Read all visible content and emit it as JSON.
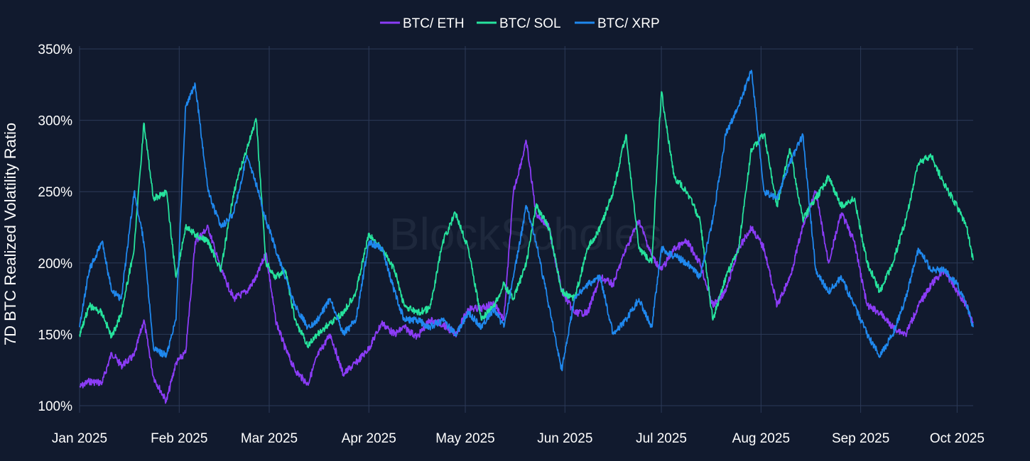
{
  "chart_data": {
    "type": "line",
    "ylabel": "7D BTC Realized Volatility Ratio",
    "watermark": "BlockScholes",
    "y_unit": "%",
    "ylim": [
      95,
      352
    ],
    "xlim": [
      "2025-01-01",
      "2025-10-06"
    ],
    "y_ticks": [
      100,
      150,
      200,
      250,
      300,
      350
    ],
    "y_tick_labels": [
      "100%",
      "150%",
      "200%",
      "250%",
      "300%",
      "350%"
    ],
    "x_ticks": [
      "2025-01-01",
      "2025-02-01",
      "2025-03-01",
      "2025-04-01",
      "2025-05-01",
      "2025-06-01",
      "2025-07-01",
      "2025-08-01",
      "2025-09-01",
      "2025-10-01"
    ],
    "x_tick_labels": [
      "Jan 2025",
      "Feb 2025",
      "Mar 2025",
      "Apr 2025",
      "May 2025",
      "Jun 2025",
      "Jul 2025",
      "Aug 2025",
      "Sep 2025",
      "Oct 2025"
    ],
    "grid": true,
    "legend_position": "top-center",
    "series": [
      {
        "name": "BTC/ ETH",
        "color": "#8b3cf6",
        "x": [
          "2025-01-01",
          "2025-01-04",
          "2025-01-08",
          "2025-01-11",
          "2025-01-14",
          "2025-01-18",
          "2025-01-21",
          "2025-01-24",
          "2025-01-28",
          "2025-01-31",
          "2025-02-03",
          "2025-02-06",
          "2025-02-10",
          "2025-02-14",
          "2025-02-18",
          "2025-02-22",
          "2025-02-25",
          "2025-02-28",
          "2025-03-03",
          "2025-03-06",
          "2025-03-09",
          "2025-03-13",
          "2025-03-16",
          "2025-03-20",
          "2025-03-24",
          "2025-03-28",
          "2025-04-01",
          "2025-04-05",
          "2025-04-09",
          "2025-04-12",
          "2025-04-16",
          "2025-04-20",
          "2025-04-24",
          "2025-04-28",
          "2025-05-02",
          "2025-05-06",
          "2025-05-10",
          "2025-05-13",
          "2025-05-16",
          "2025-05-20",
          "2025-05-23",
          "2025-05-27",
          "2025-05-31",
          "2025-06-04",
          "2025-06-08",
          "2025-06-12",
          "2025-06-16",
          "2025-06-20",
          "2025-06-24",
          "2025-06-28",
          "2025-07-01",
          "2025-07-05",
          "2025-07-09",
          "2025-07-13",
          "2025-07-17",
          "2025-07-21",
          "2025-07-25",
          "2025-07-29",
          "2025-08-02",
          "2025-08-06",
          "2025-08-10",
          "2025-08-14",
          "2025-08-18",
          "2025-08-22",
          "2025-08-26",
          "2025-08-30",
          "2025-09-03",
          "2025-09-07",
          "2025-09-11",
          "2025-09-15",
          "2025-09-19",
          "2025-09-23",
          "2025-09-27",
          "2025-10-01",
          "2025-10-04",
          "2025-10-06"
        ],
        "values": [
          113,
          117,
          116,
          137,
          128,
          135,
          160,
          120,
          103,
          130,
          137,
          215,
          225,
          195,
          175,
          180,
          190,
          207,
          160,
          140,
          125,
          115,
          135,
          150,
          122,
          130,
          140,
          158,
          150,
          155,
          148,
          160,
          157,
          150,
          168,
          168,
          172,
          160,
          250,
          285,
          235,
          225,
          180,
          165,
          165,
          190,
          185,
          210,
          230,
          205,
          195,
          210,
          215,
          200,
          170,
          180,
          210,
          225,
          210,
          170,
          190,
          225,
          250,
          200,
          235,
          215,
          170,
          165,
          155,
          150,
          170,
          185,
          195,
          180,
          170,
          158
        ]
      },
      {
        "name": "BTC/ SOL",
        "color": "#26e39d",
        "x": [
          "2025-01-01",
          "2025-01-04",
          "2025-01-08",
          "2025-01-11",
          "2025-01-14",
          "2025-01-18",
          "2025-01-21",
          "2025-01-24",
          "2025-01-28",
          "2025-01-31",
          "2025-02-03",
          "2025-02-06",
          "2025-02-10",
          "2025-02-14",
          "2025-02-18",
          "2025-02-22",
          "2025-02-25",
          "2025-02-28",
          "2025-03-03",
          "2025-03-06",
          "2025-03-09",
          "2025-03-13",
          "2025-03-16",
          "2025-03-20",
          "2025-03-24",
          "2025-03-28",
          "2025-04-01",
          "2025-04-05",
          "2025-04-09",
          "2025-04-12",
          "2025-04-16",
          "2025-04-20",
          "2025-04-24",
          "2025-04-28",
          "2025-05-02",
          "2025-05-06",
          "2025-05-10",
          "2025-05-13",
          "2025-05-16",
          "2025-05-20",
          "2025-05-23",
          "2025-05-27",
          "2025-05-31",
          "2025-06-04",
          "2025-06-08",
          "2025-06-12",
          "2025-06-16",
          "2025-06-20",
          "2025-06-24",
          "2025-06-28",
          "2025-07-01",
          "2025-07-05",
          "2025-07-09",
          "2025-07-13",
          "2025-07-17",
          "2025-07-21",
          "2025-07-25",
          "2025-07-29",
          "2025-08-02",
          "2025-08-06",
          "2025-08-10",
          "2025-08-14",
          "2025-08-18",
          "2025-08-22",
          "2025-08-26",
          "2025-08-30",
          "2025-09-03",
          "2025-09-07",
          "2025-09-11",
          "2025-09-15",
          "2025-09-19",
          "2025-09-23",
          "2025-09-27",
          "2025-10-01",
          "2025-10-04",
          "2025-10-06"
        ],
        "values": [
          150,
          170,
          165,
          148,
          165,
          210,
          298,
          245,
          250,
          190,
          225,
          220,
          215,
          195,
          250,
          280,
          300,
          200,
          190,
          195,
          160,
          142,
          150,
          158,
          165,
          180,
          220,
          210,
          195,
          170,
          165,
          168,
          215,
          235,
          210,
          160,
          170,
          185,
          175,
          200,
          240,
          225,
          180,
          175,
          210,
          225,
          250,
          290,
          210,
          200,
          320,
          260,
          250,
          230,
          160,
          190,
          210,
          280,
          290,
          240,
          280,
          230,
          245,
          260,
          240,
          245,
          200,
          180,
          200,
          230,
          270,
          275,
          255,
          240,
          225,
          202
        ]
      },
      {
        "name": "BTC/ XRP",
        "color": "#1f88ee",
        "x": [
          "2025-01-01",
          "2025-01-04",
          "2025-01-08",
          "2025-01-11",
          "2025-01-14",
          "2025-01-18",
          "2025-01-21",
          "2025-01-24",
          "2025-01-28",
          "2025-01-31",
          "2025-02-03",
          "2025-02-06",
          "2025-02-10",
          "2025-02-14",
          "2025-02-18",
          "2025-02-22",
          "2025-02-25",
          "2025-02-28",
          "2025-03-03",
          "2025-03-06",
          "2025-03-09",
          "2025-03-13",
          "2025-03-16",
          "2025-03-20",
          "2025-03-24",
          "2025-03-28",
          "2025-04-01",
          "2025-04-05",
          "2025-04-09",
          "2025-04-12",
          "2025-04-16",
          "2025-04-20",
          "2025-04-24",
          "2025-04-28",
          "2025-05-02",
          "2025-05-06",
          "2025-05-10",
          "2025-05-13",
          "2025-05-16",
          "2025-05-20",
          "2025-05-23",
          "2025-05-27",
          "2025-05-31",
          "2025-06-04",
          "2025-06-08",
          "2025-06-12",
          "2025-06-16",
          "2025-06-20",
          "2025-06-24",
          "2025-06-28",
          "2025-07-01",
          "2025-07-05",
          "2025-07-09",
          "2025-07-13",
          "2025-07-17",
          "2025-07-21",
          "2025-07-25",
          "2025-07-29",
          "2025-08-02",
          "2025-08-06",
          "2025-08-10",
          "2025-08-14",
          "2025-08-18",
          "2025-08-22",
          "2025-08-26",
          "2025-08-30",
          "2025-09-03",
          "2025-09-07",
          "2025-09-11",
          "2025-09-15",
          "2025-09-19",
          "2025-09-23",
          "2025-09-27",
          "2025-10-01",
          "2025-10-04",
          "2025-10-06"
        ],
        "values": [
          155,
          195,
          215,
          180,
          175,
          250,
          215,
          140,
          135,
          160,
          310,
          325,
          250,
          225,
          235,
          275,
          255,
          230,
          210,
          190,
          170,
          155,
          160,
          175,
          150,
          160,
          215,
          210,
          180,
          160,
          160,
          155,
          160,
          150,
          165,
          155,
          168,
          155,
          190,
          240,
          215,
          170,
          125,
          175,
          185,
          190,
          150,
          160,
          175,
          155,
          210,
          205,
          200,
          190,
          230,
          290,
          310,
          335,
          250,
          245,
          270,
          290,
          195,
          180,
          190,
          170,
          150,
          135,
          150,
          175,
          210,
          195,
          195,
          185,
          170,
          155
        ]
      }
    ]
  }
}
